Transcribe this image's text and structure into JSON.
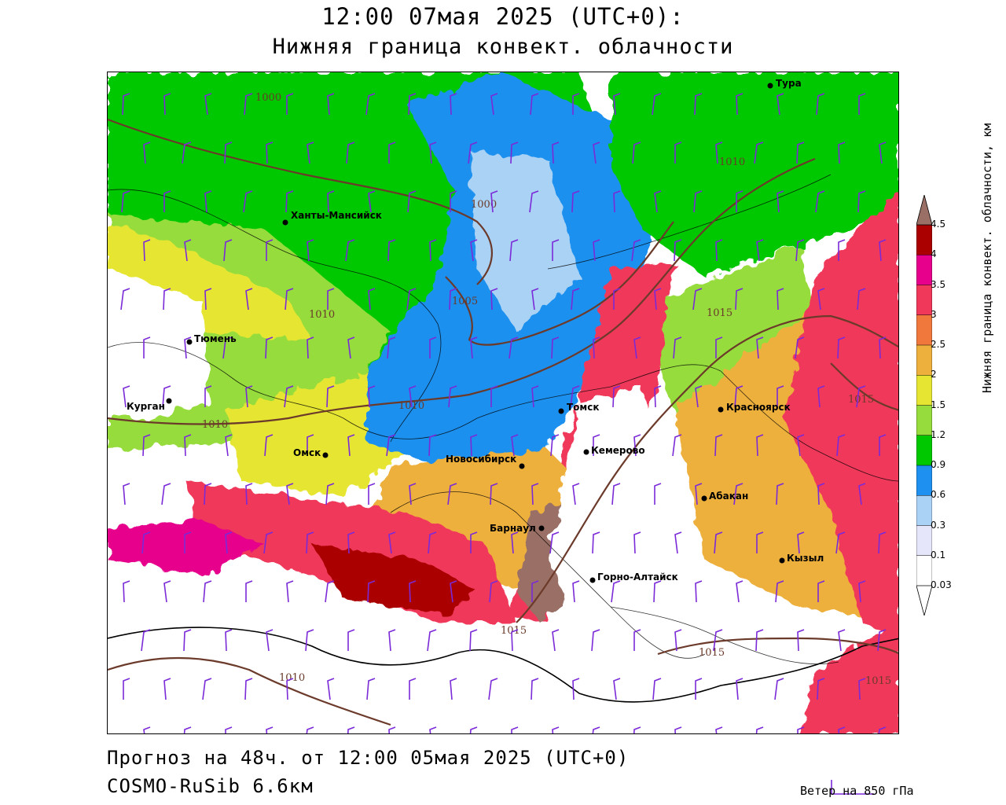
{
  "header": {
    "title": "12:00 07мая 2025 (UTC+0):",
    "subtitle": "Нижняя граница конвект. облачности"
  },
  "map": {
    "cities": [
      {
        "name": "Тура"
      },
      {
        "name": "Ханты-Мансийск"
      },
      {
        "name": "Тюмень"
      },
      {
        "name": "Курган"
      },
      {
        "name": "Омск"
      },
      {
        "name": "Новосибирск"
      },
      {
        "name": "Томск"
      },
      {
        "name": "Кемерово"
      },
      {
        "name": "Красноярск"
      },
      {
        "name": "Абакан"
      },
      {
        "name": "Барнаул"
      },
      {
        "name": "Горно-Алтайск"
      },
      {
        "name": "Кызыл"
      }
    ],
    "isobar_labels": [
      "1000",
      "1000",
      "1005",
      "1010",
      "1010",
      "1010",
      "1010",
      "1015",
      "1015",
      "1015",
      "1015",
      "1015",
      "1010"
    ],
    "palette": {
      "0.03": "#ffffff",
      "0.1": "#e6e6fa",
      "0.3": "#aad2f5",
      "0.6": "#1e90ef",
      "0.9": "#00c800",
      "1.2": "#96dc3c",
      "1.5": "#e6e632",
      "2": "#eeb03c",
      "2.5": "#f0783c",
      "3": "#f0385a",
      "3.5": "#e6008c",
      "4": "#aa0000",
      "4.5": "#9a7066"
    }
  },
  "colorbar": {
    "title": "Нижняя граница конвект. облачности, км",
    "ticks": [
      "4.5",
      "4",
      "3.5",
      "3",
      "2.5",
      "2",
      "1.5",
      "1.2",
      "0.9",
      "0.6",
      "0.3",
      "0.1",
      "0.03"
    ]
  },
  "footer": {
    "forecast": "Прогноз на 48ч. от 12:00 05мая 2025 (UTC+0)",
    "model": "COSMO-RuSib 6.6км",
    "wind_legend": "Ветер на 850 гПа"
  }
}
